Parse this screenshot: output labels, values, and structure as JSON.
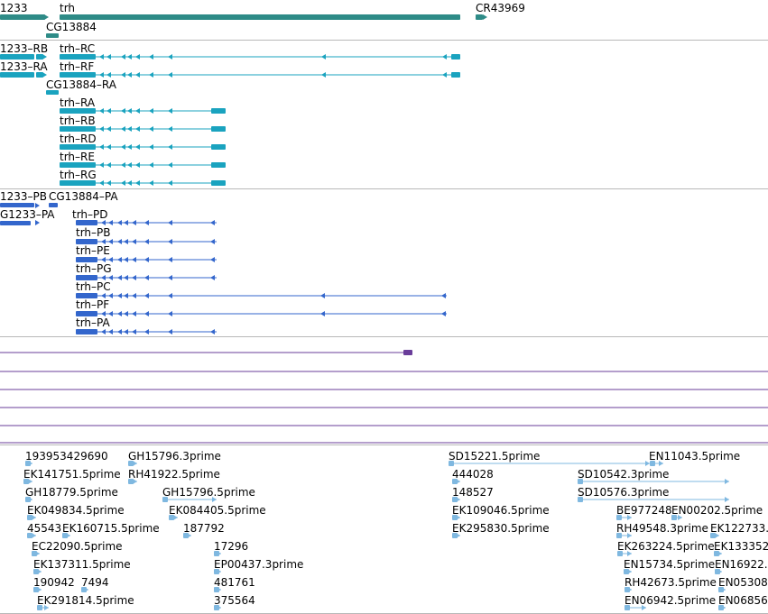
{
  "colors": {
    "gene": "#2e8b87",
    "transcript": "#1aa3bf",
    "protein": "#3366cc",
    "purple": "#6a3d9a",
    "est": "#7fb8e0",
    "divider": "#b8b8b8"
  },
  "tracks": {
    "genes": {
      "labels": [
        "1233",
        "trh",
        "CR43969",
        "CG13884"
      ]
    },
    "transcripts": {
      "labels": [
        "1233–RB",
        "trh–RC",
        "1233–RA",
        "trh–RF",
        "CG13884–RA",
        "trh–RA",
        "trh–RB",
        "trh–RD",
        "trh–RE",
        "trh–RG"
      ]
    },
    "proteins": {
      "labels": [
        "1233–PB",
        "CG13884–PA",
        "G1233–PA",
        "trh–PD",
        "trh–PB",
        "trh–PE",
        "trh–PG",
        "trh–PC",
        "trh–PF",
        "trh–PA"
      ]
    },
    "ests": {
      "labels": [
        "193953429690",
        "GH15796.3prime",
        "SD15221.5prime",
        "EN11043.5prime",
        "EK141751.5prime",
        "RH41922.5prime",
        "444028",
        "SD10542.3prime",
        "GH18779.5prime",
        "GH15796.5prime",
        "148527",
        "SD10576.3prime",
        "EK049834.5prime",
        "EK084405.5prime",
        "EK109046.5prime",
        "BE977248",
        "EN00202.5prime",
        "45543",
        "EK160715.5prime",
        "187792",
        "EK295830.5prime",
        "RH49548.3prime",
        "EK122733.",
        "EC22090.5prime",
        "17296",
        "EK263224.5prime",
        "EK133352",
        "EK137311.5prime",
        "EP00437.3prime",
        "EN15734.5prime",
        "EN16922.",
        "190942",
        "7494",
        "481761",
        "RH42673.5prime",
        "EN05308.",
        "EK291814.5prime",
        "375564",
        "EN06942.5prime",
        "EN06856"
      ]
    }
  }
}
